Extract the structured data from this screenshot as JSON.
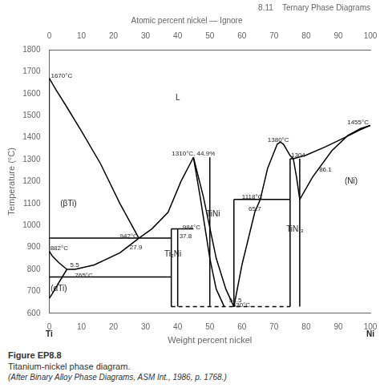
{
  "chart_data": {
    "type": "line",
    "title": "8.11    Ternary Phase Diagrams",
    "subtitle": "Atomic percent nickel — Ignore",
    "caption": [
      "Figure EP8.8",
      "Titanium-nickel phase diagram.",
      "(After Binary Alloy Phase Diagrams, ASM Int., 1986, p. 1768.)"
    ],
    "xlabel": "Weight percent nickel",
    "ylabel": "Temperature (°C)",
    "end_labels": [
      "Ti",
      "Ni"
    ],
    "xlim": [
      0,
      100
    ],
    "ylim": [
      600,
      1800
    ],
    "xticks": [
      0,
      10,
      20,
      30,
      40,
      50,
      60,
      70,
      80,
      90,
      100
    ],
    "yticks": [
      600,
      700,
      800,
      900,
      1000,
      1100,
      1200,
      1300,
      1400,
      1500,
      1600,
      1700,
      1800
    ],
    "x2lim": [
      0,
      100
    ],
    "x2ticks": [
      0,
      10,
      20,
      30,
      40,
      50,
      60,
      70,
      80,
      90,
      100
    ],
    "grid": false,
    "color": "#000000",
    "series": [
      {
        "x": [
          0,
          2,
          5,
          10,
          16,
          22,
          27.9
        ],
        "values": [
          1670,
          1620,
          1550,
          1430,
          1280,
          1100,
          942
        ]
      },
      {
        "x": [
          27.9,
          32,
          37,
          41,
          44.9
        ],
        "values": [
          942,
          985,
          1060,
          1200,
          1310
        ]
      },
      {
        "x": [
          44.9,
          47,
          50,
          52,
          54.5
        ],
        "values": [
          1310,
          1130,
          850,
          710,
          630
        ]
      },
      {
        "x": [
          44.9,
          48,
          52,
          55,
          57.5
        ],
        "values": [
          1310,
          1130,
          850,
          710,
          630
        ]
      },
      {
        "x": [
          57.5,
          60,
          64,
          65.7
        ],
        "values": [
          630,
          820,
          1060,
          1118
        ]
      },
      {
        "x": [
          65.7,
          68,
          71,
          72,
          73,
          75,
          76
        ],
        "values": [
          1118,
          1260,
          1370,
          1380,
          1368,
          1318,
          1304
        ]
      },
      {
        "x": [
          76,
          77,
          78
        ],
        "values": [
          1304,
          1220,
          1118
        ]
      },
      {
        "x": [
          78,
          82,
          88,
          93,
          97,
          100
        ],
        "values": [
          1118,
          1220,
          1340,
          1410,
          1442,
          1455
        ]
      },
      {
        "x": [
          76,
          80,
          86,
          92,
          97,
          100
        ],
        "values": [
          1304,
          1320,
          1358,
          1400,
          1437,
          1455
        ]
      },
      {
        "x": [
          27.9,
          22,
          14,
          8,
          5.5
        ],
        "values": [
          942,
          875,
          820,
          800,
          800
        ]
      },
      {
        "x": [
          0,
          1,
          3,
          5.5
        ],
        "values": [
          882,
          860,
          830,
          800
        ]
      },
      {
        "x": [
          5.5,
          3,
          1,
          0
        ],
        "values": [
          800,
          740,
          690,
          668
        ]
      },
      {
        "x": [
          38,
          38
        ],
        "values": [
          630,
          984
        ]
      },
      {
        "x": [
          40,
          40
        ],
        "values": [
          630,
          984
        ]
      },
      {
        "x": [
          38,
          40
        ],
        "values": [
          984,
          984
        ]
      },
      {
        "x": [
          50,
          50
        ],
        "values": [
          630,
          1310
        ]
      },
      {
        "x": [
          57.5,
          57.5
        ],
        "values": [
          630,
          1118
        ]
      },
      {
        "x": [
          75,
          75
        ],
        "values": [
          630,
          1304
        ]
      },
      {
        "x": [
          78,
          78
        ],
        "values": [
          630,
          1304
        ]
      },
      {
        "x": [
          75,
          76
        ],
        "values": [
          1304,
          1304
        ]
      },
      {
        "x": [
          0,
          38
        ],
        "values": [
          942,
          942
        ]
      },
      {
        "x": [
          40,
          44.9
        ],
        "values": [
          984,
          984
        ]
      },
      {
        "x": [
          0,
          38
        ],
        "values": [
          765,
          765
        ]
      },
      {
        "x": [
          57.5,
          75
        ],
        "values": [
          1118,
          1118
        ]
      },
      {
        "x": [
          38,
          75
        ],
        "values": [
          630,
          630
        ],
        "line_style": "dashed"
      },
      {
        "x": [
          0,
          0
        ],
        "values": [
          668,
          1670
        ]
      }
    ],
    "annotations": [
      {
        "text": "L",
        "x": 40,
        "y": 1580
      },
      {
        "text": "(βTi)",
        "x": 6,
        "y": 1100
      },
      {
        "text": "(αTi)",
        "x": 3,
        "y": 710
      },
      {
        "text": "Ti₂Ni",
        "x": 38.5,
        "y": 870
      },
      {
        "text": "TiNi",
        "x": 51,
        "y": 1050
      },
      {
        "text": "TiNi₃",
        "x": 76.5,
        "y": 980
      },
      {
        "text": "(Ni)",
        "x": 94,
        "y": 1200
      },
      {
        "text": "1670°C",
        "x": 0.5,
        "y": 1680,
        "align": "left"
      },
      {
        "text": "882°C",
        "x": 0.3,
        "y": 895,
        "align": "left"
      },
      {
        "text": "5.5",
        "x": 6.5,
        "y": 820,
        "align": "left"
      },
      {
        "text": "765°C",
        "x": 8,
        "y": 772,
        "align": "left"
      },
      {
        "text": "942°C",
        "x": 22,
        "y": 950,
        "align": "left"
      },
      {
        "text": "27.9",
        "x": 27,
        "y": 900,
        "align": "center"
      },
      {
        "text": "37.8",
        "x": 40.5,
        "y": 950,
        "align": "left"
      },
      {
        "text": "984°C",
        "x": 41.5,
        "y": 990,
        "align": "left"
      },
      {
        "text": "1310°C, 44.9%",
        "x": 44.9,
        "y": 1325,
        "align": "center"
      },
      {
        "text": "630°C",
        "x": 57,
        "y": 637,
        "align": "left"
      },
      {
        "text": "54.5",
        "x": 56,
        "y": 660,
        "align": "left"
      },
      {
        "text": "1118°C",
        "x": 60,
        "y": 1128,
        "align": "left"
      },
      {
        "text": "65.7",
        "x": 64,
        "y": 1075,
        "align": "center"
      },
      {
        "text": "1380°C",
        "x": 68,
        "y": 1390,
        "align": "left"
      },
      {
        "text": "1304",
        "x": 77.5,
        "y": 1318,
        "align": "center"
      },
      {
        "text": "86.1",
        "x": 86,
        "y": 1255,
        "align": "center"
      },
      {
        "text": "1455°C",
        "x": 99.5,
        "y": 1468,
        "align": "right"
      }
    ]
  }
}
